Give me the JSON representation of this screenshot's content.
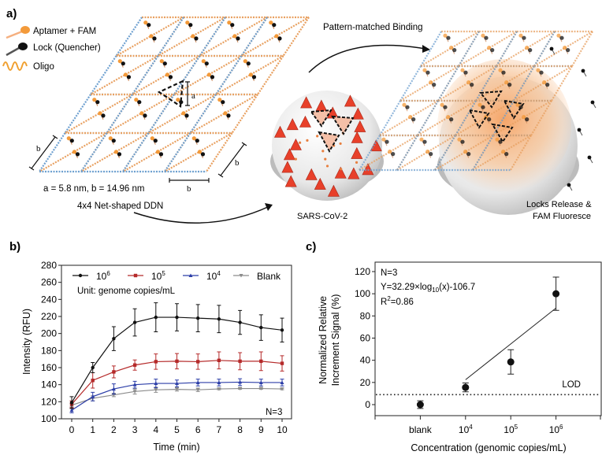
{
  "panel_a": {
    "label": "a)",
    "legend": [
      {
        "label": "Aptamer + FAM",
        "color": "#f39a3a"
      },
      {
        "label": "Lock (Quencher)",
        "color": "#1a1a1a"
      },
      {
        "label": "Oligo",
        "color": "#f0a030"
      }
    ],
    "dim_a": "a",
    "dim_b": "b",
    "dimensions_text": "a = 5.8 nm, b = 14.96 nm",
    "ddn_caption": "4x4 Net-shaped DDN",
    "binding_caption": "Pattern-matched Binding",
    "virus_caption": "SARS-CoV-2",
    "release_caption_1": "Locks Release &",
    "release_caption_2": "FAM Fluoresce",
    "colors": {
      "spike": "#e8402a",
      "virus": "#e6e6e6",
      "glow": "#f6a868",
      "helix_blue": "#6ea0d0",
      "helix_orange": "#e8a060"
    }
  },
  "chart_data": [
    {
      "panel": "b)",
      "type": "line",
      "xlabel": "Time (min)",
      "ylabel": "Intensity (RFU)",
      "xlim": [
        0,
        10
      ],
      "ylim": [
        100,
        280
      ],
      "xticks": [
        0,
        1,
        2,
        3,
        4,
        5,
        6,
        7,
        8,
        9,
        10
      ],
      "yticks": [
        100,
        120,
        140,
        160,
        180,
        200,
        220,
        240,
        260,
        280
      ],
      "legend_placement": "top",
      "unit_note": "Unit: genome copies/mL",
      "annotation": "N=3",
      "x": [
        0,
        1,
        2,
        3,
        4,
        5,
        6,
        7,
        8,
        9,
        10
      ],
      "series": [
        {
          "name": "10^6",
          "base": "10",
          "exp": "6",
          "color": "#111111",
          "marker": "circle",
          "values": [
            119,
            160,
            194,
            213,
            219,
            219,
            218,
            217,
            213,
            207,
            204
          ],
          "errors": [
            7,
            6,
            14,
            16,
            17,
            16,
            16,
            16,
            14,
            15,
            14
          ]
        },
        {
          "name": "10^5",
          "base": "10",
          "exp": "5",
          "color": "#b52a2a",
          "marker": "square",
          "values": [
            117,
            145,
            155,
            163,
            167,
            167.5,
            167,
            168.5,
            167.5,
            167.5,
            165
          ],
          "errors": [
            4,
            9,
            7,
            6,
            9,
            9,
            9,
            10,
            10,
            11,
            9
          ]
        },
        {
          "name": "10^4",
          "base": "10",
          "exp": "4",
          "color": "#2c3ea8",
          "marker": "triangle-up",
          "values": [
            110,
            126,
            135,
            140,
            141.5,
            141.5,
            142.5,
            142.5,
            143,
            142.5,
            142.5
          ],
          "errors": [
            3,
            5,
            6,
            4,
            5,
            4,
            4,
            4,
            4,
            4,
            4
          ]
        },
        {
          "name": "Blank",
          "base": "Blank",
          "exp": "",
          "color": "#8c8c8c",
          "marker": "triangle-down",
          "values": [
            116,
            124,
            128,
            132,
            134,
            134.5,
            134,
            135,
            135.5,
            135.5,
            135
          ],
          "errors": [
            2,
            3,
            2,
            3,
            3,
            2,
            2,
            1,
            1,
            1,
            1
          ]
        }
      ]
    },
    {
      "panel": "c)",
      "type": "scatter",
      "xlabel": "Concentration (genomic copies/mL)",
      "ylabel_1": "Normalized Relative",
      "ylabel_2": "Increment Signal (%)",
      "ylim": [
        -10,
        120
      ],
      "yticks": [
        0,
        20,
        40,
        60,
        80,
        100,
        120
      ],
      "categories": [
        {
          "label": "blank",
          "base": "blank",
          "exp": "",
          "log10": 3
        },
        {
          "label": "10^4",
          "base": "10",
          "exp": "4",
          "log10": 4
        },
        {
          "label": "10^5",
          "base": "10",
          "exp": "5",
          "log10": 5
        },
        {
          "label": "10^6",
          "base": "10",
          "exp": "6",
          "log10": 6
        }
      ],
      "xlim_log10": [
        2,
        7
      ],
      "values": [
        0,
        15.5,
        38.5,
        100
      ],
      "errors": [
        3.5,
        4,
        11,
        15
      ],
      "fit": {
        "slope": 32.29,
        "intercept": -106.7,
        "from_log10": 4,
        "to_log10": 6
      },
      "lod_value": 9,
      "lod_label": "LOD",
      "annotation_n": "N=3",
      "equation_prefix": "Y=32.29×log",
      "equation_sub": "10",
      "equation_suffix": "(x)-106.7",
      "r2_prefix": "R",
      "r2_sup": "2",
      "r2_suffix": "=0.86"
    }
  ]
}
